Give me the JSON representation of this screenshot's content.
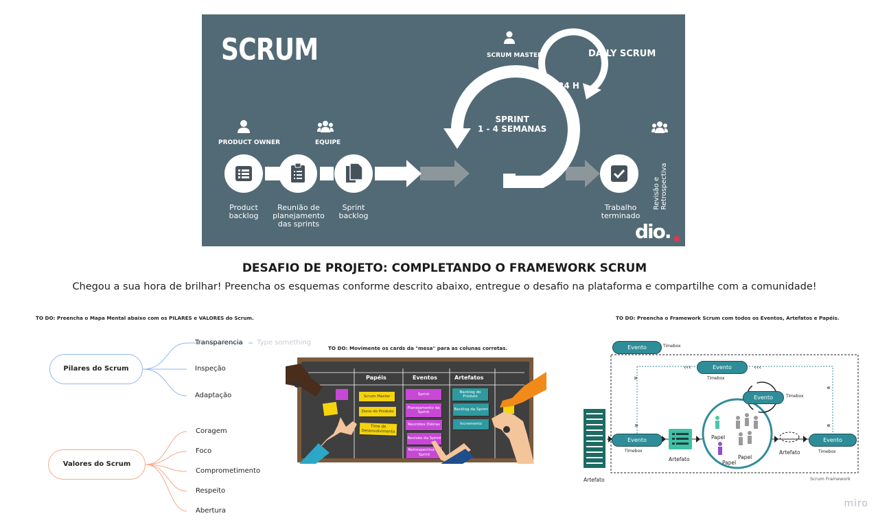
{
  "hero": {
    "title": "SCRUM",
    "roles": {
      "product_owner": "PRODUCT OWNER",
      "team": "EQUIPE",
      "scrum_master": "SCRUM MASTER"
    },
    "daily": "DAILY SCRUM",
    "hours": "24 H",
    "sprint": "SPRINT\n1 - 4 SEMANAS",
    "steps": {
      "product_backlog": "Product\nbacklog",
      "planning": "Reunião de\nplanejamento\ndas sprints",
      "sprint_backlog": "Sprint\nbacklog",
      "done": "Trabalho\nterminado"
    },
    "review": "Revisão e\nRetrospectiva",
    "logo": "dio.",
    "colors": {
      "bg": "#526a76",
      "arrow": "#ffffff",
      "arrow_gray": "#8c969b",
      "accent": "#e8334a"
    }
  },
  "title": "DESAFIO DE PROJETO: COMPLETANDO O FRAMEWORK SCRUM",
  "subtitle": "Chegou a sua hora de brilhar! Preencha os esquemas conforme descrito abaixo, entregue o desafio na plataforma e compartilhe com a comunidade!",
  "mindmap": {
    "todo": "TO DO: Preencha o Mapa Mental abaixo com os PILARES e VALORES do Scrum.",
    "pilares": {
      "label": "Pilares do Scrum",
      "items": [
        "Transparencia",
        "Inspeção",
        "Adaptação"
      ],
      "placeholder": "Type something"
    },
    "valores": {
      "label": "Valores do Scrum",
      "items": [
        "Coragem",
        "Foco",
        "Comprometimento",
        "Respeito",
        "Abertura"
      ]
    },
    "colors": {
      "pilares": "#8fb6f2",
      "valores": "#f5a98a"
    }
  },
  "board": {
    "todo": "TO DO: Movimente os cards da \"mesa\" para as colunas corretas.",
    "columns": [
      "Papéis",
      "Eventos",
      "Artefatos"
    ],
    "papeis": [
      "Scrum Master",
      "Dono do Produto",
      "Time de\nDesenvolvimento"
    ],
    "eventos": [
      "Sprint",
      "Planejamento\nda Sprint",
      "Reuniões Diárias",
      "Revisão da\nSprint",
      "Retrospectiva da\nSprint"
    ],
    "artefatos": [
      "Backlog do\nProduto",
      "Backlog da\nSprint",
      "Incremento"
    ]
  },
  "framework": {
    "todo": "TO DO: Preencha o Framework Scrum com todos os Eventos, Artefatos e Papéis.",
    "evento": "Evento",
    "timebox": "Timebox",
    "artefato": "Artefato",
    "papel": "Papel",
    "footer": "Scrum Framework",
    "colors": {
      "event": "#2f8d99",
      "circle": "#2f8d99",
      "green_person": "#4cc7a8",
      "purple_person": "#8e4fd0"
    }
  },
  "brand": "miro"
}
